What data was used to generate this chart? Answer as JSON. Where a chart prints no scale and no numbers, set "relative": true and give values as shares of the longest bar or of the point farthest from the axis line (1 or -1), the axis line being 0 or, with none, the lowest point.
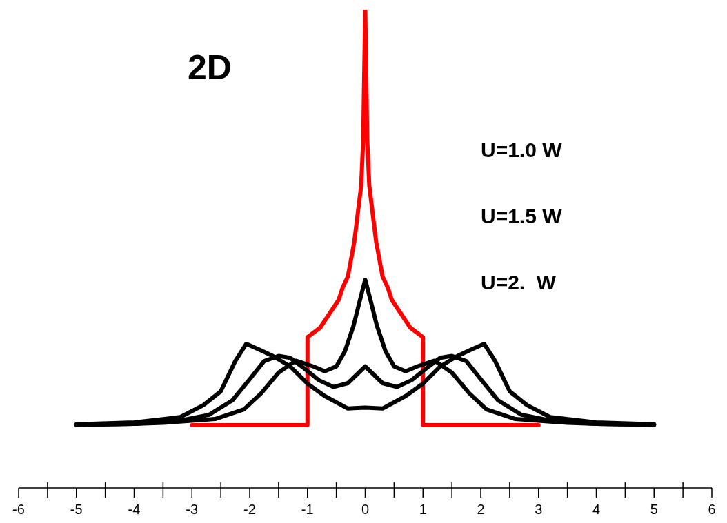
{
  "chart_data": {
    "type": "line",
    "relative": true,
    "xlim": [
      -6,
      6
    ],
    "xticks": [
      -6,
      {
        "value": -5.5,
        "label": null
      },
      -5,
      {
        "value": -4.5,
        "label": null
      },
      -4,
      {
        "value": -3.5,
        "label": null
      },
      -3,
      {
        "value": -2.5,
        "label": null
      },
      -2,
      {
        "value": -1.5,
        "label": null
      },
      -1,
      {
        "value": -0.5,
        "label": null
      },
      0,
      {
        "value": 0.5,
        "label": null
      },
      1,
      {
        "value": 1.5,
        "label": null
      },
      2,
      {
        "value": 2.5,
        "label": null
      },
      3,
      {
        "value": 3.5,
        "label": null
      },
      4,
      {
        "value": 4.5,
        "label": null
      },
      5,
      {
        "value": 5.5,
        "label": null
      },
      6
    ],
    "annotations": [
      "2D",
      "U=1.0 W",
      "U=1.5 W",
      "U=2.  W"
    ],
    "grid": false,
    "legend": false,
    "marker": "none",
    "line_style": "solid",
    "tick_labels": "x",
    "series": [
      {
        "color": "#ff0000",
        "x": [
          -3,
          -1,
          -1,
          -0.78,
          -0.46,
          -0.39,
          -0.3,
          -0.19,
          -0.07,
          -0.035,
          0,
          0.035,
          0.07,
          0.19,
          0.3,
          0.39,
          0.46,
          0.78,
          1,
          1,
          3
        ],
        "values": [
          0.131,
          0.131,
          0.315,
          0.335,
          0.393,
          0.419,
          0.442,
          0.514,
          0.632,
          0.727,
          1,
          0.727,
          0.632,
          0.514,
          0.442,
          0.419,
          0.393,
          0.335,
          0.315,
          0.131,
          0.131
        ]
      },
      {
        "color": "#000000",
        "x": [
          -5,
          -4,
          -3.5,
          -2.6,
          -2.1,
          -1.8,
          -1.5,
          -1.2,
          -0.9,
          -0.7,
          -0.5,
          -0.35,
          -0.2,
          -0.08,
          0,
          0.08,
          0.2,
          0.35,
          0.5,
          0.7,
          0.9,
          1.2,
          1.5,
          1.8,
          2.1,
          2.6,
          3.5,
          4,
          5
        ],
        "values": [
          0.132,
          0.134,
          0.136,
          0.144,
          0.164,
          0.198,
          0.241,
          0.266,
          0.254,
          0.244,
          0.254,
          0.286,
          0.34,
          0.398,
          0.435,
          0.398,
          0.34,
          0.286,
          0.254,
          0.244,
          0.254,
          0.266,
          0.241,
          0.198,
          0.164,
          0.144,
          0.136,
          0.134,
          0.132
        ]
      },
      {
        "color": "#000000",
        "x": [
          -5,
          -4,
          -3.2,
          -2.7,
          -2.3,
          -2,
          -1.75,
          -1.5,
          -1.3,
          -1.1,
          -0.8,
          -0.55,
          -0.3,
          0,
          0.3,
          0.55,
          0.8,
          1.1,
          1.3,
          1.5,
          1.75,
          2,
          2.3,
          2.7,
          3.2,
          4,
          5
        ],
        "values": [
          0.132,
          0.134,
          0.141,
          0.153,
          0.183,
          0.227,
          0.265,
          0.276,
          0.272,
          0.254,
          0.225,
          0.211,
          0.219,
          0.254,
          0.219,
          0.211,
          0.225,
          0.254,
          0.272,
          0.276,
          0.265,
          0.227,
          0.183,
          0.153,
          0.141,
          0.134,
          0.132
        ]
      },
      {
        "color": "#000000",
        "x": [
          -5,
          -4,
          -3.2,
          -2.8,
          -2.5,
          -2.25,
          -2.06,
          -1.85,
          -1.6,
          -1.3,
          -1,
          -0.7,
          -0.3,
          0,
          0.3,
          0.7,
          1,
          1.3,
          1.6,
          1.85,
          2.06,
          2.25,
          2.5,
          2.8,
          3.2,
          4,
          5
        ],
        "values": [
          0.133,
          0.137,
          0.148,
          0.173,
          0.202,
          0.265,
          0.301,
          0.29,
          0.276,
          0.254,
          0.218,
          0.192,
          0.166,
          0.168,
          0.166,
          0.192,
          0.218,
          0.254,
          0.276,
          0.29,
          0.301,
          0.265,
          0.202,
          0.173,
          0.148,
          0.137,
          0.133
        ]
      }
    ]
  }
}
